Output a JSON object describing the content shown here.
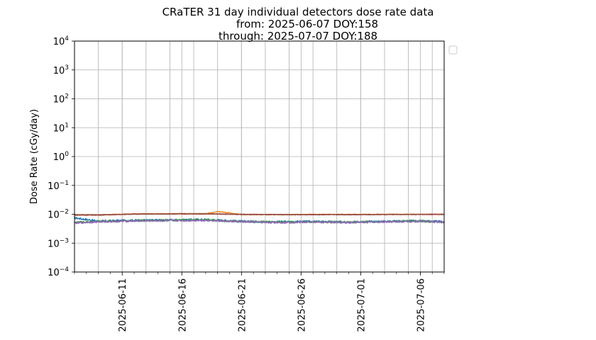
{
  "chart_data": {
    "type": "line",
    "title_lines": [
      "CRaTER 31 day individual detectors dose rate data",
      "from: 2025-06-07 DOY:158",
      "through: 2025-07-07 DOY:188"
    ],
    "xlabel": "",
    "ylabel": "Dose Rate (cGy/day)",
    "yscale": "log",
    "ylim": [
      0.0001,
      10000
    ],
    "xlim": [
      "2025-06-07",
      "2025-07-08"
    ],
    "grid": true,
    "legend": "empty legend box, right of the plot (no entries)",
    "y_ticks": [
      {
        "base": "10",
        "exp": "4",
        "value": 10000
      },
      {
        "base": "10",
        "exp": "3",
        "value": 1000
      },
      {
        "base": "10",
        "exp": "2",
        "value": 100
      },
      {
        "base": "10",
        "exp": "1",
        "value": 10
      },
      {
        "base": "10",
        "exp": "0",
        "value": 1
      },
      {
        "base": "10",
        "exp": "−1",
        "value": 0.1
      },
      {
        "base": "10",
        "exp": "−2",
        "value": 0.01
      },
      {
        "base": "10",
        "exp": "−3",
        "value": 0.001
      },
      {
        "base": "10",
        "exp": "−4",
        "value": 0.0001
      }
    ],
    "x_tick_labels": [
      "2025-06-11",
      "2025-06-16",
      "2025-06-21",
      "2025-06-26",
      "2025-07-01",
      "2025-07-06"
    ],
    "series": [
      {
        "color": "#1f77b4",
        "x": [
          "2025-06-07",
          "2025-06-09",
          "2025-06-12",
          "2025-06-15",
          "2025-06-18",
          "2025-06-21",
          "2025-06-24",
          "2025-06-27",
          "2025-06-30",
          "2025-07-03",
          "2025-07-06",
          "2025-07-08"
        ],
        "y": [
          0.0075,
          0.0058,
          0.0062,
          0.0063,
          0.0066,
          0.0057,
          0.0055,
          0.0056,
          0.0054,
          0.0057,
          0.006,
          0.0055
        ]
      },
      {
        "color": "#ff7f0e",
        "x": [
          "2025-06-07",
          "2025-06-09",
          "2025-06-12",
          "2025-06-15",
          "2025-06-18",
          "2025-06-19",
          "2025-06-20",
          "2025-06-21",
          "2025-06-24",
          "2025-06-27",
          "2025-06-30",
          "2025-07-03",
          "2025-07-06",
          "2025-07-08"
        ],
        "y": [
          0.0098,
          0.0095,
          0.0103,
          0.0104,
          0.0105,
          0.0125,
          0.0112,
          0.0098,
          0.0097,
          0.0098,
          0.0098,
          0.0099,
          0.0099,
          0.01
        ]
      },
      {
        "color": "#2ca02c",
        "x": [
          "2025-06-07",
          "2025-06-09",
          "2025-06-12",
          "2025-06-15",
          "2025-06-18",
          "2025-06-21",
          "2025-06-24",
          "2025-06-27",
          "2025-06-30",
          "2025-07-03",
          "2025-07-06",
          "2025-07-08"
        ],
        "y": [
          0.0052,
          0.0056,
          0.006,
          0.0062,
          0.0064,
          0.0056,
          0.0053,
          0.0055,
          0.0053,
          0.0056,
          0.0058,
          0.0054
        ]
      },
      {
        "color": "#d62728",
        "x": [
          "2025-06-07",
          "2025-06-09",
          "2025-06-12",
          "2025-06-15",
          "2025-06-18",
          "2025-06-21",
          "2025-06-24",
          "2025-06-27",
          "2025-06-30",
          "2025-07-03",
          "2025-07-06",
          "2025-07-08"
        ],
        "y": [
          0.0093,
          0.0094,
          0.0102,
          0.0103,
          0.0103,
          0.0099,
          0.0097,
          0.0098,
          0.0098,
          0.0099,
          0.0099,
          0.01
        ]
      },
      {
        "color": "#9467bd",
        "x": [
          "2025-06-07",
          "2025-06-09",
          "2025-06-12",
          "2025-06-15",
          "2025-06-18",
          "2025-06-21",
          "2025-06-24",
          "2025-06-27",
          "2025-06-30",
          "2025-07-03",
          "2025-07-06",
          "2025-07-08"
        ],
        "y": [
          0.005,
          0.0055,
          0.0059,
          0.006,
          0.0062,
          0.0055,
          0.0052,
          0.0054,
          0.0052,
          0.0055,
          0.0057,
          0.0053
        ]
      },
      {
        "color": "#8c564b",
        "x": [
          "2025-06-07",
          "2025-06-09",
          "2025-06-12",
          "2025-06-15",
          "2025-06-18",
          "2025-06-21",
          "2025-06-24",
          "2025-06-27",
          "2025-06-30",
          "2025-07-03",
          "2025-07-06",
          "2025-07-08"
        ],
        "y": [
          0.0095,
          0.0095,
          0.0101,
          0.0103,
          0.0104,
          0.0099,
          0.0097,
          0.0097,
          0.0097,
          0.0098,
          0.0099,
          0.0099
        ]
      }
    ]
  }
}
